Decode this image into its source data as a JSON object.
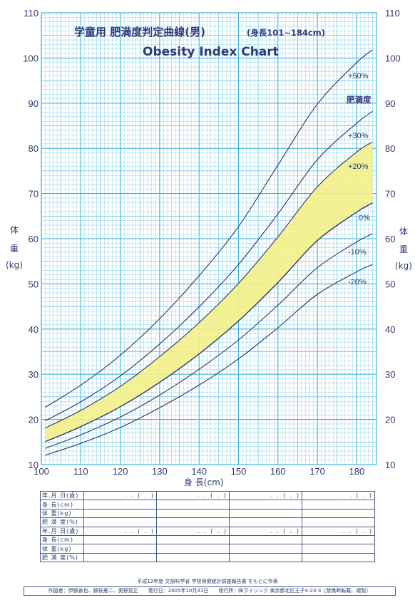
{
  "chart_data": {
    "type": "line",
    "title": "学童用 肥満度判定曲線(男)",
    "title_note": "(身長101~184cm)",
    "subtitle": "Obesity Index Chart",
    "xlabel": "身 長(cm)",
    "ylabel": [
      "体",
      "重",
      "(kg)"
    ],
    "ylabel_right": [
      "体",
      "重",
      "(kg)"
    ],
    "xlim": [
      100,
      185
    ],
    "ylim": [
      10,
      110
    ],
    "xticks": [
      100,
      110,
      120,
      130,
      140,
      150,
      160,
      170,
      180
    ],
    "yticks": [
      10,
      20,
      30,
      40,
      50,
      60,
      70,
      80,
      90,
      100,
      110
    ],
    "grid": true,
    "band_label": "肥満度",
    "band": {
      "from_series": "0%",
      "to_series": "+20%",
      "color": "#f4f08a"
    },
    "series": [
      {
        "name": "+50%",
        "x": [
          101,
          110,
          120,
          130,
          140,
          150,
          160,
          170,
          180,
          184
        ],
        "y": [
          22.7,
          27.6,
          34.2,
          42.3,
          51.8,
          62.7,
          76.3,
          89.8,
          99.0,
          101.8
        ]
      },
      {
        "name": "+30%",
        "x": [
          101,
          110,
          120,
          130,
          140,
          150,
          160,
          170,
          180,
          184
        ],
        "y": [
          19.7,
          23.9,
          29.6,
          36.7,
          44.9,
          54.3,
          65.5,
          77.5,
          85.6,
          88.2
        ]
      },
      {
        "name": "+20%",
        "x": [
          101,
          110,
          120,
          130,
          140,
          150,
          160,
          170,
          180,
          184
        ],
        "y": [
          18.1,
          22.0,
          27.3,
          33.9,
          41.4,
          50.1,
          60.4,
          71.5,
          79.2,
          81.4
        ]
      },
      {
        "name": "0%",
        "x": [
          101,
          110,
          120,
          130,
          140,
          150,
          160,
          170,
          180,
          184
        ],
        "y": [
          15.1,
          18.4,
          22.8,
          28.2,
          34.5,
          41.8,
          50.3,
          59.6,
          65.9,
          67.9
        ]
      },
      {
        "name": "-10%",
        "x": [
          101,
          110,
          120,
          130,
          140,
          150,
          160,
          170,
          180,
          184
        ],
        "y": [
          13.6,
          16.6,
          20.5,
          25.4,
          31.1,
          37.6,
          45.3,
          53.6,
          59.3,
          61.1
        ]
      },
      {
        "name": "-20%",
        "x": [
          101,
          110,
          120,
          130,
          140,
          150,
          160,
          170,
          180,
          184
        ],
        "y": [
          12.1,
          14.7,
          18.2,
          22.6,
          27.6,
          33.4,
          40.3,
          47.7,
          52.7,
          54.3
        ]
      }
    ],
    "colors": {
      "grid": "#3fb3d9",
      "curve": "#2b3670",
      "text": "#2b3b6e"
    }
  },
  "record_table": {
    "rows": [
      {
        "label": "年.月.日(歳)",
        "cells": [
          ". . ( . )",
          ". . ( . )",
          ". . ( . )",
          ". . ( . )"
        ]
      },
      {
        "label": "身 長(cm)",
        "cells": [
          "",
          "",
          "",
          ""
        ]
      },
      {
        "label": "体 重(kg)",
        "cells": [
          "",
          "",
          "",
          ""
        ]
      },
      {
        "label": "肥 満 度(%)",
        "cells": [
          "",
          "",
          "",
          ""
        ]
      },
      {
        "label": "年.月.日(歳)",
        "cells": [
          ". . ( . )",
          ". . ( . )",
          ". . ( . )",
          ". . ( . )"
        ]
      },
      {
        "label": "身 長(cm)",
        "cells": [
          "",
          "",
          "",
          ""
        ]
      },
      {
        "label": "体 重(kg)",
        "cells": [
          "",
          "",
          "",
          ""
        ]
      },
      {
        "label": "肥 満 度(%)",
        "cells": [
          "",
          "",
          "",
          ""
        ]
      }
    ]
  },
  "footer": {
    "source": "平成12年度 文部科学省 学校保健統計調査報告書 をもとに作表",
    "credits": "作図者：伊藤善也、藤枝憲二、奥野晃正　　発行日：2005年10月31日　　発行所：㈱ヴイリンク 東京都北区王子4-23-3（禁無断転載、複製）"
  }
}
